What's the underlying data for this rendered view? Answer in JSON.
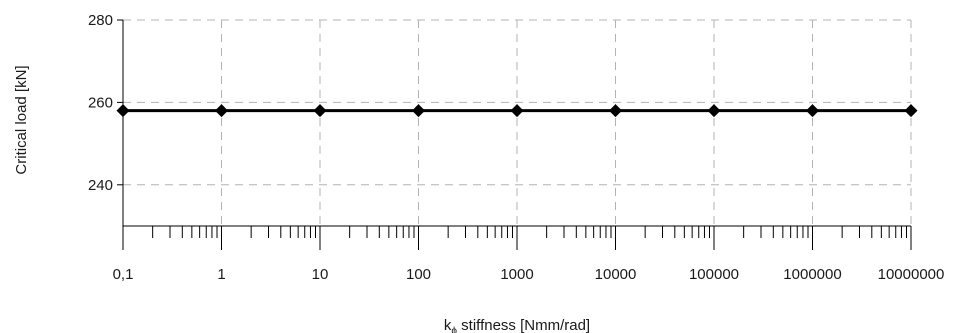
{
  "chart_data": {
    "type": "line",
    "xlabel_main": "k",
    "xlabel_sub": "ϕ",
    "xlabel_rest": " stiffness [Nmm/rad]",
    "ylabel": "Critical load [kN]",
    "x_scale": "log",
    "x_tick_labels": [
      "0,1",
      "1",
      "10",
      "100",
      "1000",
      "10000",
      "100000",
      "1000000",
      "10000000"
    ],
    "x": [
      0.1,
      1,
      10,
      100,
      1000,
      10000,
      100000,
      1000000,
      10000000
    ],
    "y": [
      258,
      258,
      258,
      258,
      258,
      258,
      258,
      258,
      258
    ],
    "y_ticks": [
      240,
      260,
      280
    ],
    "ylim": [
      230,
      280
    ],
    "xlim": [
      0.1,
      10000000
    ],
    "grid": true,
    "colors": {
      "series": "#000000",
      "grid": "#b3b3b3",
      "axis": "#000000"
    }
  }
}
